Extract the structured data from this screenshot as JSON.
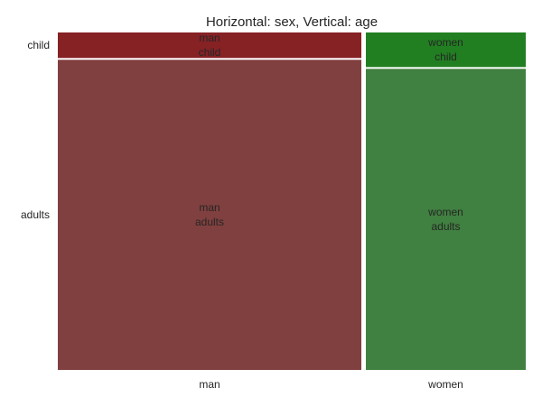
{
  "chart_data": {
    "type": "mosaic",
    "title": "Horizontal: sex, Vertical: age",
    "categories": [
      "man",
      "women"
    ],
    "row_categories": [
      "child",
      "adults"
    ],
    "column_shares": [
      0.655,
      0.345
    ],
    "cells": [
      {
        "column": "man",
        "row": "child",
        "share_of_column": 0.076,
        "label_lines": [
          "man",
          "child"
        ],
        "color": "#862124"
      },
      {
        "column": "man",
        "row": "adults",
        "share_of_column": 0.924,
        "label_lines": [
          "man",
          "adults"
        ],
        "color": "#80403f"
      },
      {
        "column": "women",
        "row": "child",
        "share_of_column": 0.103,
        "label_lines": [
          "women",
          "child"
        ],
        "color": "#217f21"
      },
      {
        "column": "women",
        "row": "adults",
        "share_of_column": 0.897,
        "label_lines": [
          "women",
          "adults"
        ],
        "color": "#408040"
      }
    ],
    "y_tick_labels": [
      "child",
      "adults"
    ],
    "x_tick_labels": [
      "man",
      "women"
    ],
    "grid": false
  }
}
